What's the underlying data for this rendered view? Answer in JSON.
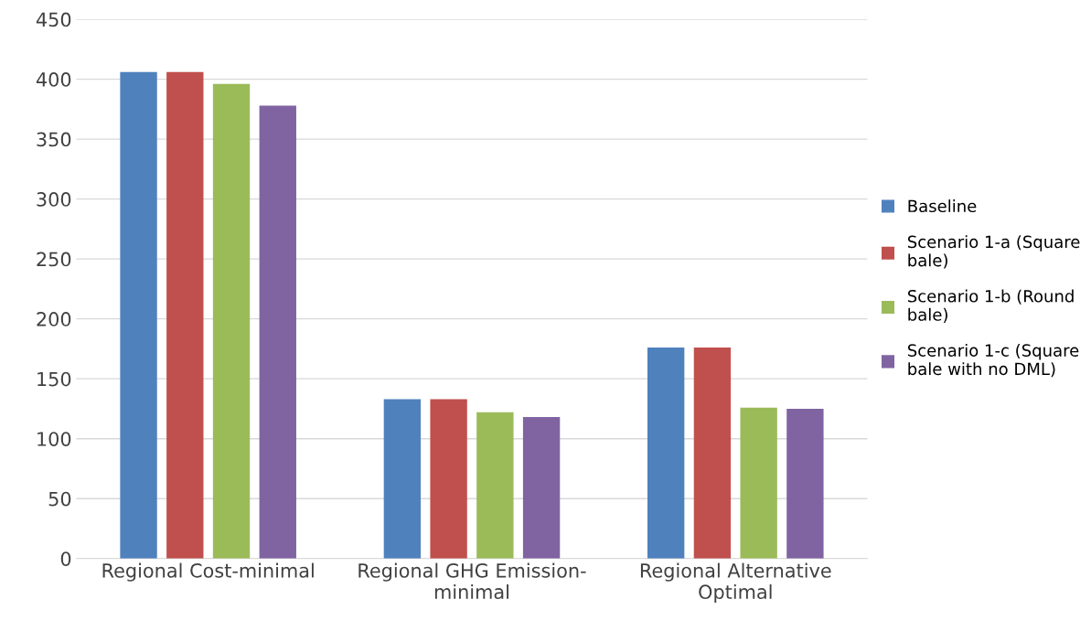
{
  "chart_data": {
    "type": "bar",
    "categories": [
      "Regional Cost-minimal",
      "Regional GHG Emission-minimal",
      "Regional Alternative Optimal"
    ],
    "series": [
      {
        "name": "Baseline",
        "color": "#4f81bd",
        "values": [
          406,
          133,
          176
        ]
      },
      {
        "name": "Scenario 1-a (Square bale)",
        "color": "#c0504d",
        "values": [
          406,
          133,
          176
        ]
      },
      {
        "name": "Scenario 1-b (Round bale)",
        "color": "#9bbb59",
        "values": [
          396,
          122,
          126
        ]
      },
      {
        "name": "Scenario 1-c (Square bale with no DML)",
        "color": "#8064a2",
        "values": [
          378,
          118,
          125
        ]
      }
    ],
    "ylim": [
      0,
      450
    ],
    "yticks": [
      0,
      50,
      100,
      150,
      200,
      250,
      300,
      350,
      400,
      450
    ],
    "grid": "y",
    "legend": "right"
  }
}
